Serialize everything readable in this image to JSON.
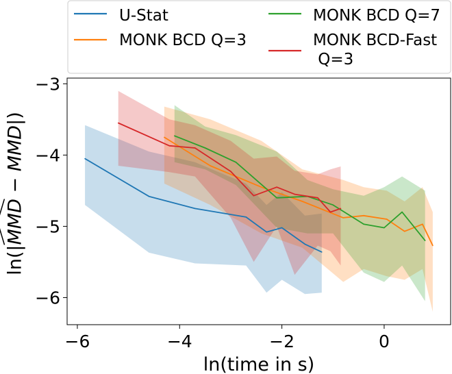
{
  "chart_data": {
    "type": "line",
    "title": "",
    "xlabel": "ln(time in s)",
    "ylabel_prefix": "ln(|",
    "ylabel_hat_term": "MMD",
    "ylabel_minus": " − ",
    "ylabel_term": "MMD",
    "ylabel_suffix": "|)",
    "xlim": [
      -6.2,
      1.3
    ],
    "ylim": [
      -6.38,
      -2.92
    ],
    "xticks": [
      -6,
      -4,
      -2,
      0
    ],
    "xtick_labels": [
      "−6",
      "−4",
      "−2",
      "0"
    ],
    "yticks": [
      -6,
      -5,
      -4,
      -3
    ],
    "ytick_labels": [
      "−6",
      "−5",
      "−4",
      "−3"
    ],
    "grid": false,
    "legend_position": "above-top",
    "series": [
      {
        "name": "U-Stat",
        "color": "#1f77b4",
        "x": [
          -5.85,
          -4.6,
          -3.7,
          -2.7,
          -2.3,
          -2.0,
          -1.55,
          -1.22
        ],
        "y": [
          -4.05,
          -4.58,
          -4.75,
          -4.87,
          -5.08,
          -5.02,
          -5.25,
          -5.36
        ],
        "upper": [
          -3.58,
          -3.95,
          -4.1,
          -4.4,
          -4.7,
          -4.52,
          -4.85,
          -4.82
        ],
        "lower": [
          -4.7,
          -5.37,
          -5.52,
          -5.55,
          -5.93,
          -5.75,
          -5.95,
          -5.93
        ]
      },
      {
        "name": "MONK BCD Q=3",
        "color": "#ff7f0e",
        "x": [
          -4.3,
          -3.4,
          -2.4,
          -1.6,
          -0.8,
          -0.4,
          0.05,
          0.4,
          0.75,
          0.95
        ],
        "y": [
          -3.75,
          -4.15,
          -4.45,
          -4.65,
          -4.88,
          -4.85,
          -4.9,
          -5.07,
          -4.97,
          -5.27
        ],
        "upper": [
          -3.32,
          -3.5,
          -3.8,
          -4.2,
          -4.35,
          -4.45,
          -4.5,
          -4.65,
          -4.45,
          -4.8
        ],
        "lower": [
          -4.4,
          -4.7,
          -5.1,
          -5.3,
          -5.78,
          -5.6,
          -5.7,
          -5.75,
          -5.6,
          -6.2
        ]
      },
      {
        "name": "MONK BCD Q=7",
        "color": "#2ca02c",
        "x": [
          -4.1,
          -3.5,
          -2.9,
          -2.1,
          -1.5,
          -1.0,
          -0.4,
          0.0,
          0.35,
          0.8
        ],
        "y": [
          -3.73,
          -3.9,
          -4.1,
          -4.6,
          -4.58,
          -4.7,
          -4.97,
          -5.02,
          -4.8,
          -5.2
        ],
        "upper": [
          -3.3,
          -3.6,
          -3.72,
          -3.95,
          -4.35,
          -4.48,
          -4.57,
          -4.45,
          -4.3,
          -4.5
        ],
        "lower": [
          -4.1,
          -4.2,
          -4.42,
          -5.02,
          -5.1,
          -5.1,
          -5.65,
          -5.78,
          -5.55,
          -6.05
        ]
      },
      {
        "name": "MONK BCD-Fast\n Q=3",
        "color": "#d62728",
        "x": [
          -5.2,
          -4.2,
          -3.7,
          -3.0,
          -2.55,
          -2.1,
          -1.75,
          -1.3,
          -1.05,
          -0.85
        ],
        "y": [
          -3.55,
          -3.87,
          -3.9,
          -4.23,
          -4.57,
          -4.45,
          -4.55,
          -4.6,
          -4.8,
          -4.75
        ],
        "upper": [
          -3.1,
          -3.5,
          -3.58,
          -3.8,
          -4.05,
          -4.02,
          -4.22,
          -4.27,
          -4.2,
          -4.16
        ],
        "lower": [
          -4.15,
          -4.24,
          -4.3,
          -4.88,
          -5.5,
          -5.0,
          -5.68,
          -5.27,
          -5.35,
          -5.55
        ]
      }
    ]
  }
}
